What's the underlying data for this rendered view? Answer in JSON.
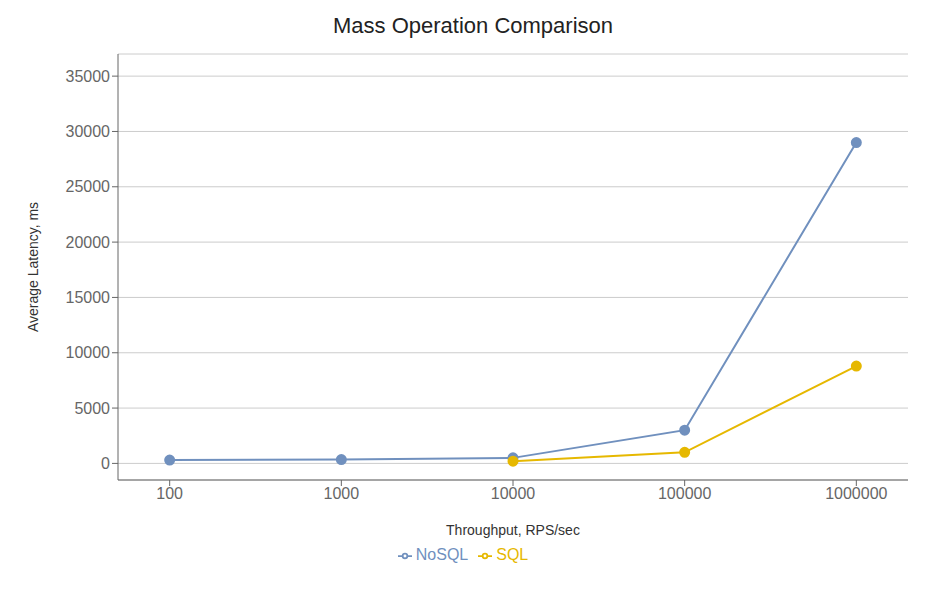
{
  "chart_data": {
    "type": "line",
    "title": "Mass Operation Comparison",
    "xlabel": "Throughput, RPS/sec",
    "ylabel": "Average Latency, ms",
    "x": [
      100,
      1000,
      10000,
      100000,
      1000000
    ],
    "series": [
      {
        "name": "NoSQL",
        "color": "#7090be",
        "marker": "circle",
        "values": [
          300,
          350,
          500,
          3000,
          29000
        ]
      },
      {
        "name": "SQL",
        "color": "#e6b800",
        "marker": "circle",
        "values": [
          null,
          null,
          200,
          1000,
          8800
        ]
      }
    ],
    "log": "x",
    "xlim": [
      50,
      2000000
    ],
    "xticks": [
      100,
      1000,
      10000,
      100000,
      1000000
    ],
    "ylim": [
      -1500,
      37000
    ],
    "yticks": [
      0,
      5000,
      10000,
      15000,
      20000,
      25000,
      30000,
      35000
    ],
    "grid": true,
    "legend": "bottom"
  }
}
